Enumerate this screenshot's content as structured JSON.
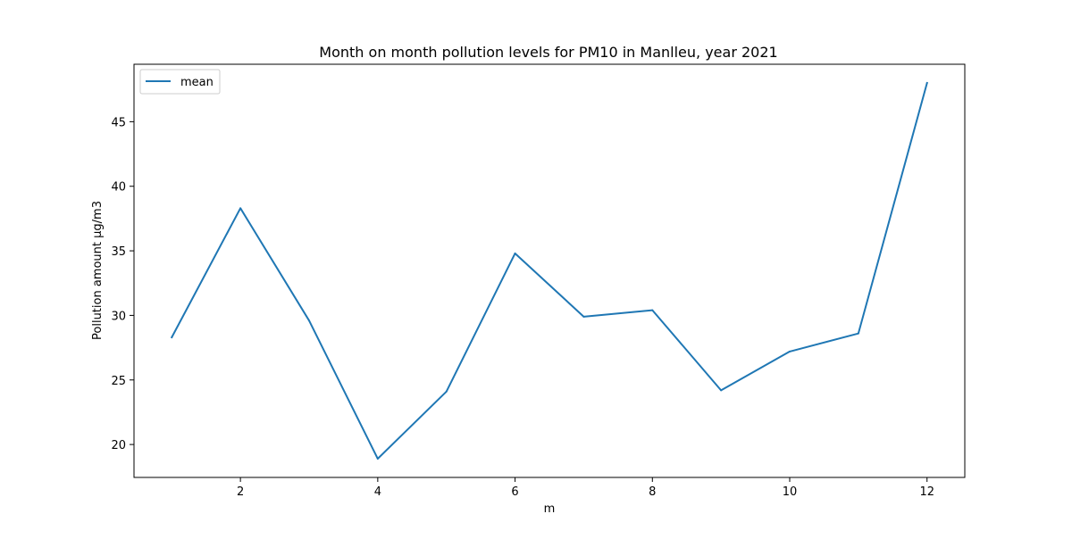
{
  "chart_data": {
    "type": "line",
    "title": "Month on month pollution levels for PM10 in Manlleu, year 2021",
    "xlabel": "m",
    "ylabel": "Pollution amount µg/m3",
    "x": [
      1,
      2,
      3,
      4,
      5,
      6,
      7,
      8,
      9,
      10,
      11,
      12
    ],
    "series": [
      {
        "name": "mean",
        "color": "#1f77b4",
        "values": [
          28.3,
          38.3,
          29.6,
          18.9,
          24.1,
          34.8,
          29.9,
          30.4,
          24.2,
          27.2,
          28.6,
          48.0
        ]
      }
    ],
    "xlim": [
      0.45,
      12.55
    ],
    "ylim": [
      17.45,
      49.45
    ],
    "xticks": [
      2,
      4,
      6,
      8,
      10,
      12
    ],
    "yticks": [
      20,
      25,
      30,
      35,
      40,
      45
    ],
    "grid": false,
    "legend_position": "top-left"
  }
}
